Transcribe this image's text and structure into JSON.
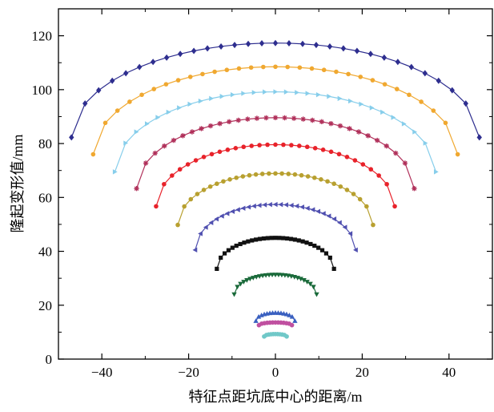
{
  "chart_data": {
    "type": "line",
    "title": "",
    "xlabel": "特征点距坑底中心的距离/m",
    "ylabel": "隆起变形值/mm",
    "xlim": [
      -50,
      50
    ],
    "ylim": [
      0,
      130
    ],
    "xticks": [
      -40,
      -20,
      0,
      20,
      40
    ],
    "xtick_labels": [
      "−40",
      "−20",
      "0",
      "20",
      "40"
    ],
    "yticks": [
      0,
      20,
      40,
      60,
      80,
      100,
      120
    ],
    "ytick_labels": [
      "0",
      "20",
      "40",
      "60",
      "80",
      "100",
      "120"
    ],
    "grid": false,
    "legend": "none",
    "series": [
      {
        "color": "#2e2e8f",
        "marker": "diamond",
        "half_width": 47,
        "peak": 117.3,
        "edge": 82.3,
        "points": 31
      },
      {
        "color": "#f0a830",
        "marker": "circle",
        "half_width": 42,
        "peak": 108.5,
        "edge": 76.0,
        "points": 31
      },
      {
        "color": "#87ceeb",
        "marker": "triangle-right",
        "half_width": 37,
        "peak": 99.2,
        "edge": 69.5,
        "points": 31
      },
      {
        "color": "#b0305a",
        "marker": "star",
        "half_width": 32,
        "peak": 89.6,
        "edge": 63.3,
        "points": 31
      },
      {
        "color": "#e8222a",
        "marker": "circle",
        "half_width": 27.5,
        "peak": 79.6,
        "edge": 56.7,
        "points": 31
      },
      {
        "color": "#b8a030",
        "marker": "circle",
        "half_width": 22.5,
        "peak": 68.9,
        "edge": 49.8,
        "points": 31
      },
      {
        "color": "#5050b0",
        "marker": "triangle-left",
        "half_width": 18.5,
        "peak": 57.4,
        "edge": 40.5,
        "points": 31
      },
      {
        "color": "#111111",
        "marker": "square",
        "half_width": 13.5,
        "peak": 45.0,
        "edge": 33.5,
        "points": 31
      },
      {
        "color": "#1a6a3a",
        "marker": "triangle-down",
        "half_width": 9.5,
        "peak": 31.3,
        "edge": 24.0,
        "points": 27
      },
      {
        "color": "#3a60c0",
        "marker": "triangle-up",
        "half_width": 4.5,
        "peak": 17.2,
        "edge": 14.2,
        "points": 15
      },
      {
        "color": "#c050a0",
        "marker": "circle",
        "half_width": 3.8,
        "peak": 13.6,
        "edge": 12.6,
        "points": 13
      },
      {
        "color": "#70c8c8",
        "marker": "circle",
        "half_width": 2.6,
        "peak": 9.3,
        "edge": 8.4,
        "points": 11
      }
    ]
  }
}
